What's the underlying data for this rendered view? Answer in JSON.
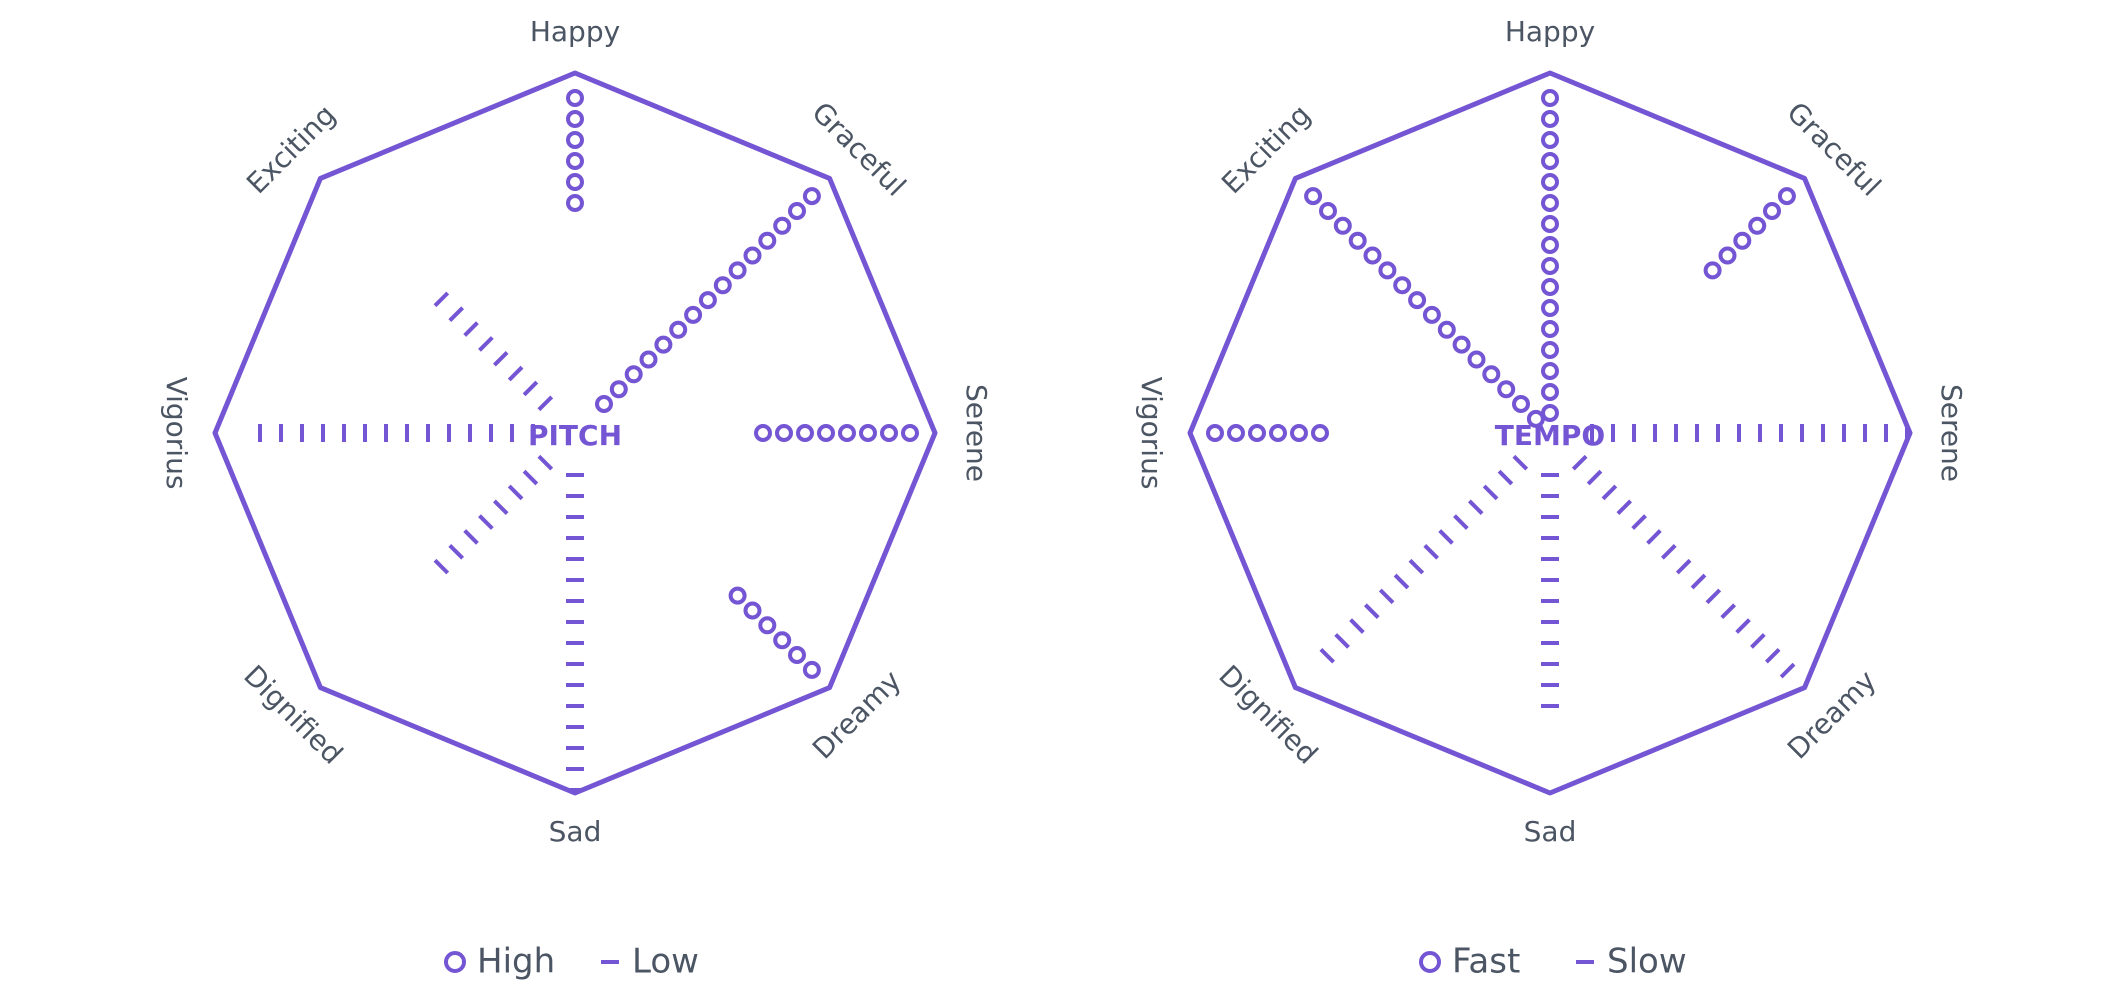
{
  "theme": {
    "accent": "#7455d3",
    "label_color": "#4b5563",
    "background": "#ffffff"
  },
  "chart_data": [
    {
      "type": "radial-glyph",
      "center_label": "PITCH",
      "axes": [
        "Happy",
        "Graceful",
        "Serene",
        "Dreamy",
        "Sad",
        "Dignified",
        "Vigorius",
        "Exciting"
      ],
      "legend": [
        {
          "symbol": "circle",
          "label": "High"
        },
        {
          "symbol": "dash",
          "label": "Low"
        }
      ],
      "marks": [
        {
          "axis": "Happy",
          "symbol": "circle",
          "count": 6
        },
        {
          "axis": "Graceful",
          "symbol": "circle",
          "count": 15
        },
        {
          "axis": "Serene",
          "symbol": "circle",
          "count": 8
        },
        {
          "axis": "Dreamy",
          "symbol": "circle",
          "count": 6
        },
        {
          "axis": "Sad",
          "symbol": "dash",
          "count": 16
        },
        {
          "axis": "Dignified",
          "symbol": "dash",
          "count": 8
        },
        {
          "axis": "Vigorius",
          "symbol": "dash",
          "count": 14
        },
        {
          "axis": "Exciting",
          "symbol": "dash",
          "count": 8
        }
      ]
    },
    {
      "type": "radial-glyph",
      "center_label": "TEMPO",
      "axes": [
        "Happy",
        "Graceful",
        "Serene",
        "Dreamy",
        "Sad",
        "Dignified",
        "Vigorius",
        "Exciting"
      ],
      "legend": [
        {
          "symbol": "circle",
          "label": "Fast"
        },
        {
          "symbol": "dash",
          "label": "Slow"
        }
      ],
      "marks": [
        {
          "axis": "Happy",
          "symbol": "circle",
          "count": 16
        },
        {
          "axis": "Graceful",
          "symbol": "circle",
          "count": 6
        },
        {
          "axis": "Serene",
          "symbol": "dash",
          "count": 16
        },
        {
          "axis": "Dreamy",
          "symbol": "dash",
          "count": 15
        },
        {
          "axis": "Sad",
          "symbol": "dash",
          "count": 12
        },
        {
          "axis": "Dignified",
          "symbol": "dash",
          "count": 14
        },
        {
          "axis": "Vigorius",
          "symbol": "circle",
          "count": 6
        },
        {
          "axis": "Exciting",
          "symbol": "circle",
          "count": 16
        }
      ]
    }
  ]
}
